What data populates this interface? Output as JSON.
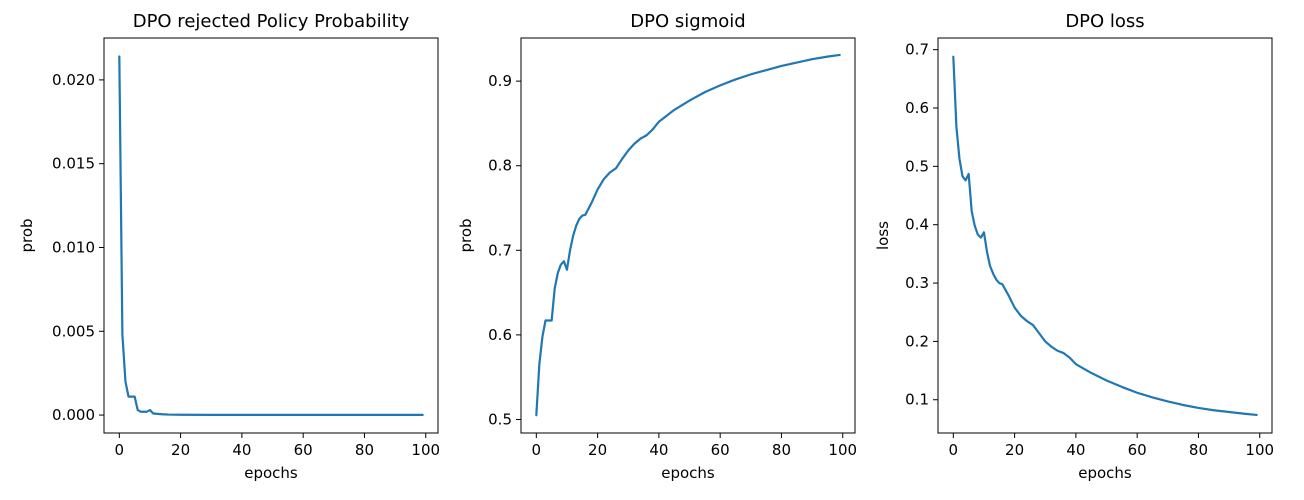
{
  "chart_data": [
    {
      "type": "line",
      "title": "DPO rejected Policy Probability",
      "xlabel": "epochs",
      "ylabel": "prob",
      "xlim": [
        -5,
        104
      ],
      "ylim": [
        -0.00107,
        0.0225
      ],
      "xticks": [
        0,
        20,
        40,
        60,
        80,
        100
      ],
      "xtick_labels": [
        "0",
        "20",
        "40",
        "60",
        "80",
        "100"
      ],
      "yticks": [
        0.0,
        0.005,
        0.01,
        0.015,
        0.02
      ],
      "ytick_labels": [
        "0.000",
        "0.005",
        "0.010",
        "0.015",
        "0.020"
      ],
      "grid": false,
      "color": "#1f77b4",
      "x": [
        0,
        1,
        2,
        3,
        4,
        5,
        6,
        7,
        8,
        9,
        10,
        11,
        12,
        14,
        16,
        20,
        30,
        40,
        50,
        60,
        70,
        80,
        90,
        99
      ],
      "y": [
        0.0214,
        0.0048,
        0.002,
        0.0011,
        0.0011,
        0.0011,
        0.0003,
        0.0002,
        0.0002,
        0.0002,
        0.0003,
        0.0001,
        8e-05,
        5e-05,
        3e-05,
        2e-05,
        1e-05,
        1e-05,
        1e-05,
        1e-05,
        1e-05,
        1e-05,
        1e-05,
        1e-05
      ]
    },
    {
      "type": "line",
      "title": "DPO sigmoid",
      "xlabel": "epochs",
      "ylabel": "prob",
      "xlim": [
        -5,
        104
      ],
      "ylim": [
        0.484,
        0.951
      ],
      "xticks": [
        0,
        20,
        40,
        60,
        80,
        100
      ],
      "xtick_labels": [
        "0",
        "20",
        "40",
        "60",
        "80",
        "100"
      ],
      "yticks": [
        0.5,
        0.6,
        0.7,
        0.8,
        0.9
      ],
      "ytick_labels": [
        "0.5",
        "0.6",
        "0.7",
        "0.8",
        "0.9"
      ],
      "grid": false,
      "color": "#1f77b4",
      "x": [
        0,
        1,
        2,
        3,
        4,
        5,
        6,
        7,
        8,
        9,
        10,
        11,
        12,
        13,
        14,
        15,
        16,
        18,
        20,
        22,
        24,
        26,
        28,
        30,
        32,
        34,
        36,
        38,
        40,
        45,
        50,
        55,
        60,
        65,
        70,
        75,
        80,
        85,
        90,
        95,
        99
      ],
      "y": [
        0.505,
        0.566,
        0.598,
        0.617,
        0.617,
        0.617,
        0.655,
        0.673,
        0.683,
        0.687,
        0.677,
        0.7,
        0.717,
        0.729,
        0.737,
        0.741,
        0.742,
        0.756,
        0.772,
        0.784,
        0.792,
        0.797,
        0.808,
        0.818,
        0.826,
        0.832,
        0.836,
        0.843,
        0.852,
        0.866,
        0.877,
        0.887,
        0.895,
        0.902,
        0.908,
        0.913,
        0.918,
        0.922,
        0.926,
        0.929,
        0.931
      ]
    },
    {
      "type": "line",
      "title": "DPO loss",
      "xlabel": "epochs",
      "ylabel": "loss",
      "xlim": [
        -5,
        104
      ],
      "ylim": [
        0.043,
        0.72
      ],
      "xticks": [
        0,
        20,
        40,
        60,
        80,
        100
      ],
      "xtick_labels": [
        "0",
        "20",
        "40",
        "60",
        "80",
        "100"
      ],
      "yticks": [
        0.1,
        0.2,
        0.3,
        0.4,
        0.5,
        0.6,
        0.7
      ],
      "ytick_labels": [
        "0.1",
        "0.2",
        "0.3",
        "0.4",
        "0.5",
        "0.6",
        "0.7"
      ],
      "grid": false,
      "color": "#1f77b4",
      "x": [
        0,
        1,
        2,
        3,
        4,
        5,
        6,
        7,
        8,
        9,
        10,
        11,
        12,
        13,
        14,
        15,
        16,
        18,
        20,
        22,
        24,
        26,
        28,
        30,
        32,
        34,
        36,
        38,
        40,
        45,
        50,
        55,
        60,
        65,
        70,
        75,
        80,
        85,
        90,
        95,
        99
      ],
      "y": [
        0.688,
        0.568,
        0.513,
        0.483,
        0.476,
        0.487,
        0.423,
        0.398,
        0.383,
        0.378,
        0.387,
        0.353,
        0.329,
        0.316,
        0.306,
        0.3,
        0.298,
        0.279,
        0.258,
        0.244,
        0.235,
        0.228,
        0.214,
        0.2,
        0.191,
        0.184,
        0.18,
        0.172,
        0.161,
        0.146,
        0.133,
        0.122,
        0.112,
        0.104,
        0.097,
        0.091,
        0.086,
        0.082,
        0.079,
        0.076,
        0.074
      ]
    }
  ]
}
